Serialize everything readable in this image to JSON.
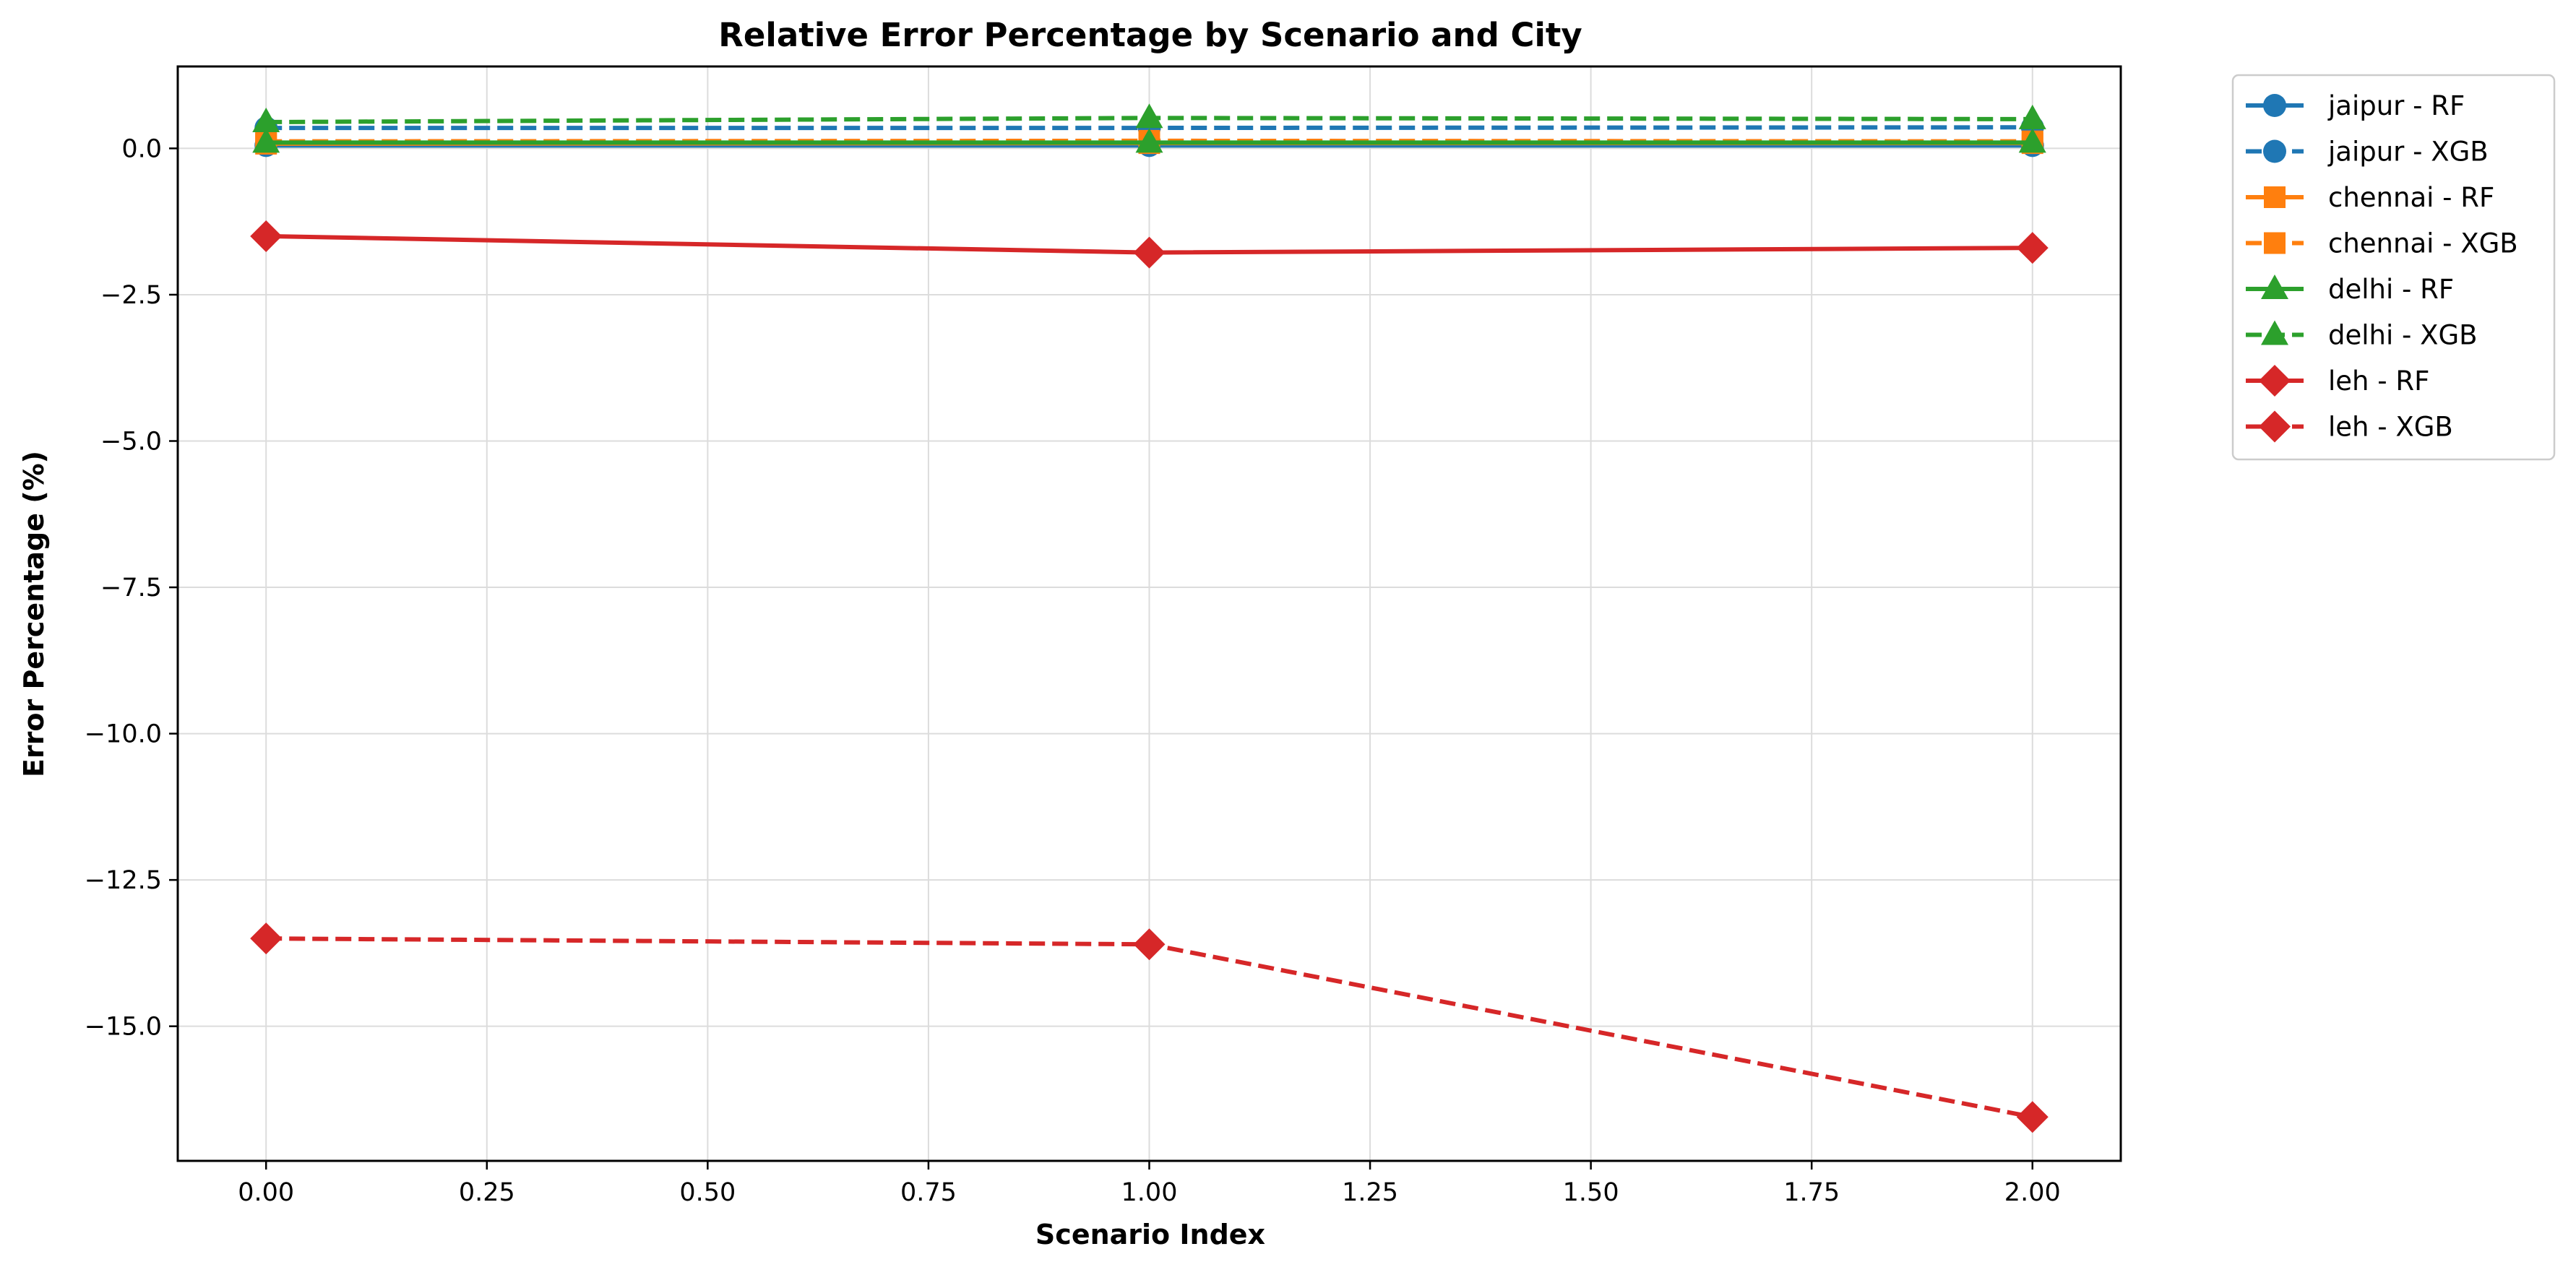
{
  "chart_data": {
    "type": "line",
    "title": "Relative Error Percentage by Scenario and City",
    "xlabel": "Scenario Index",
    "ylabel": "Error Percentage (%)",
    "xlim": [
      -0.1,
      2.1
    ],
    "ylim": [
      -17.3,
      1.4
    ],
    "xticks": [
      0.0,
      0.25,
      0.5,
      0.75,
      1.0,
      1.25,
      1.5,
      1.75,
      2.0
    ],
    "xtick_labels": [
      "0.00",
      "0.25",
      "0.50",
      "0.75",
      "1.00",
      "1.25",
      "1.50",
      "1.75",
      "2.00"
    ],
    "yticks": [
      0.0,
      -2.5,
      -5.0,
      -7.5,
      -10.0,
      -12.5,
      -15.0
    ],
    "ytick_labels": [
      "0.0",
      "−2.5",
      "−5.0",
      "−7.5",
      "−10.0",
      "−12.5",
      "−15.0"
    ],
    "grid": true,
    "legend_position": "outside-right-top",
    "x": [
      0,
      1,
      2
    ],
    "series": [
      {
        "name": "jaipur - RF",
        "color": "#1f77b4",
        "marker": "circle",
        "linestyle": "solid",
        "values": [
          0.05,
          0.05,
          0.05
        ]
      },
      {
        "name": "jaipur - XGB",
        "color": "#1f77b4",
        "marker": "circle",
        "linestyle": "dashed",
        "values": [
          0.35,
          0.35,
          0.36
        ]
      },
      {
        "name": "chennai - RF",
        "color": "#ff7f0e",
        "marker": "square",
        "linestyle": "solid",
        "values": [
          0.08,
          0.09,
          0.09
        ]
      },
      {
        "name": "chennai - XGB",
        "color": "#ff7f0e",
        "marker": "square",
        "linestyle": "dashed",
        "values": [
          0.12,
          0.13,
          0.12
        ]
      },
      {
        "name": "delhi - RF",
        "color": "#2ca02c",
        "marker": "triangle",
        "linestyle": "solid",
        "values": [
          0.1,
          0.1,
          0.1
        ]
      },
      {
        "name": "delhi - XGB",
        "color": "#2ca02c",
        "marker": "triangle",
        "linestyle": "dashed",
        "values": [
          0.45,
          0.52,
          0.5
        ]
      },
      {
        "name": "leh - RF",
        "color": "#d62728",
        "marker": "diamond",
        "linestyle": "solid",
        "values": [
          -1.5,
          -1.78,
          -1.7
        ]
      },
      {
        "name": "leh - XGB",
        "color": "#d62728",
        "marker": "diamond",
        "linestyle": "dashed",
        "values": [
          -13.5,
          -13.6,
          -16.55
        ]
      }
    ]
  }
}
